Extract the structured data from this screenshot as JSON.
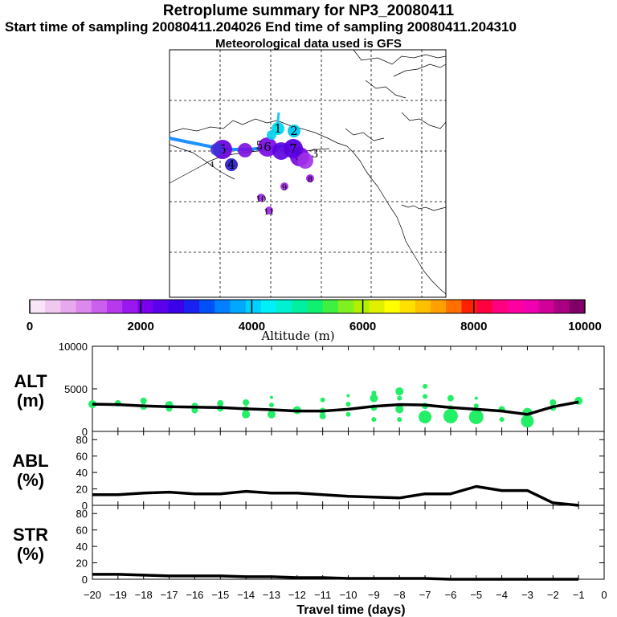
{
  "header": {
    "title": "Retroplume summary for NP3_20080411",
    "sampling_line": "Start time of sampling 20080411.204026     End time of sampling 20080411.204310",
    "met_line": "Meteorological data used is GFS"
  },
  "colors": {
    "scale": [
      "#f8e6f8",
      "#f0c8f0",
      "#e8a8ee",
      "#dc88ec",
      "#cc60ee",
      "#b838f0",
      "#9a18f0",
      "#7a00ee",
      "#5a00ea",
      "#3a00e8",
      "#1a20f0",
      "#0050f8",
      "#0080ff",
      "#00a8ff",
      "#00d0ff",
      "#00f0f8",
      "#00f0d0",
      "#00f0a0",
      "#10f070",
      "#40f040",
      "#80f020",
      "#b0f000",
      "#e0f000",
      "#ffff00",
      "#ffe000",
      "#ffc000",
      "#ffa000",
      "#ff7000",
      "#ff2000",
      "#ff0040",
      "#ff0080",
      "#ff00a0",
      "#f000b0",
      "#d00098",
      "#a80080",
      "#800068"
    ],
    "alt_marker": "#22ee66",
    "trajectory": "#1e90ff"
  },
  "map": {
    "clusters": [
      {
        "label": "1",
        "color": "#00d8f0",
        "size": "m"
      },
      {
        "label": "2",
        "color": "#00c8f0",
        "size": "m"
      },
      {
        "label": "3",
        "color": "#7a10e0",
        "size": "l"
      },
      {
        "label": "4",
        "color": "#3020d0",
        "size": "m"
      },
      {
        "label": "5",
        "color": "#6a08e0",
        "size": "l"
      },
      {
        "label": "6",
        "color": "#8010e8",
        "size": "l"
      },
      {
        "label": "7",
        "color": "#5a00e0",
        "size": "l"
      },
      {
        "label": "8",
        "color": "#a020e8",
        "size": "s"
      },
      {
        "label": "9",
        "color": "#a030e8",
        "size": "s"
      },
      {
        "label": "10",
        "color": "#9a30e0",
        "size": "s"
      },
      {
        "label": "11",
        "color": "#a030e8",
        "size": "s"
      }
    ],
    "extra_labels": [
      "4",
      "5",
      "3"
    ]
  },
  "colorbar": {
    "ticks": [
      "0",
      "2000",
      "4000",
      "6000",
      "8000",
      "10000"
    ],
    "label": "Altitude (m)"
  },
  "chart_data": [
    {
      "type": "line",
      "name": "ALT",
      "ylabel": "ALT\n(m)",
      "ylabel_top": "ALT",
      "ylabel_unit": "(m)",
      "ylim": [
        0,
        10000
      ],
      "yticks": [
        "0",
        "5000",
        "10000"
      ],
      "x": [
        -20,
        -19,
        -18,
        -17,
        -16,
        -15,
        -14,
        -13,
        -12,
        -11,
        -10,
        -9,
        -8,
        -7,
        -6,
        -5,
        -4,
        -3,
        -2,
        -1
      ],
      "values": [
        3200,
        3150,
        3000,
        2900,
        2850,
        2800,
        2650,
        2550,
        2400,
        2400,
        2600,
        2950,
        3150,
        3100,
        2800,
        2600,
        2400,
        2000,
        2900,
        3450
      ],
      "scatter": [
        {
          "x": -20,
          "y": 3200,
          "s": 5
        },
        {
          "x": -19,
          "y": 3300,
          "s": 4
        },
        {
          "x": -18,
          "y": 3600,
          "s": 4
        },
        {
          "x": -18,
          "y": 2900,
          "s": 4
        },
        {
          "x": -17,
          "y": 3100,
          "s": 5
        },
        {
          "x": -17,
          "y": 2700,
          "s": 4
        },
        {
          "x": -16,
          "y": 3000,
          "s": 4
        },
        {
          "x": -16,
          "y": 2500,
          "s": 4
        },
        {
          "x": -15,
          "y": 3300,
          "s": 4
        },
        {
          "x": -15,
          "y": 2700,
          "s": 4
        },
        {
          "x": -14,
          "y": 3400,
          "s": 4
        },
        {
          "x": -14,
          "y": 2600,
          "s": 4
        },
        {
          "x": -14,
          "y": 2000,
          "s": 5
        },
        {
          "x": -13,
          "y": 4000,
          "s": 2
        },
        {
          "x": -13,
          "y": 3100,
          "s": 3
        },
        {
          "x": -13,
          "y": 2000,
          "s": 5
        },
        {
          "x": -12,
          "y": 2500,
          "s": 5
        },
        {
          "x": -11,
          "y": 3700,
          "s": 3
        },
        {
          "x": -11,
          "y": 2400,
          "s": 4
        },
        {
          "x": -11,
          "y": 1800,
          "s": 4
        },
        {
          "x": -10,
          "y": 4200,
          "s": 2
        },
        {
          "x": -10,
          "y": 3200,
          "s": 3
        },
        {
          "x": -10,
          "y": 2000,
          "s": 3
        },
        {
          "x": -9,
          "y": 4500,
          "s": 3
        },
        {
          "x": -9,
          "y": 3900,
          "s": 5
        },
        {
          "x": -9,
          "y": 2800,
          "s": 4
        },
        {
          "x": -9,
          "y": 1400,
          "s": 3
        },
        {
          "x": -8,
          "y": 4700,
          "s": 5
        },
        {
          "x": -8,
          "y": 3900,
          "s": 3
        },
        {
          "x": -8,
          "y": 2600,
          "s": 5
        },
        {
          "x": -8,
          "y": 1400,
          "s": 3
        },
        {
          "x": -7,
          "y": 5300,
          "s": 3
        },
        {
          "x": -7,
          "y": 4100,
          "s": 3
        },
        {
          "x": -7,
          "y": 3000,
          "s": 4
        },
        {
          "x": -7,
          "y": 1700,
          "s": 8
        },
        {
          "x": -6,
          "y": 3900,
          "s": 4
        },
        {
          "x": -6,
          "y": 2800,
          "s": 3
        },
        {
          "x": -6,
          "y": 1800,
          "s": 9
        },
        {
          "x": -5,
          "y": 3900,
          "s": 2
        },
        {
          "x": -5,
          "y": 3000,
          "s": 3
        },
        {
          "x": -5,
          "y": 1700,
          "s": 9
        },
        {
          "x": -4,
          "y": 2600,
          "s": 4
        },
        {
          "x": -4,
          "y": 1400,
          "s": 3
        },
        {
          "x": -3,
          "y": 2200,
          "s": 6
        },
        {
          "x": -3,
          "y": 1200,
          "s": 8
        },
        {
          "x": -2,
          "y": 3400,
          "s": 4
        },
        {
          "x": -2,
          "y": 2800,
          "s": 4
        },
        {
          "x": -1,
          "y": 3600,
          "s": 5
        }
      ]
    },
    {
      "type": "line",
      "name": "ABL",
      "ylabel_top": "ABL",
      "ylabel_unit": "(%)",
      "ylim": [
        0,
        90
      ],
      "yticks": [
        "0",
        "20",
        "40",
        "60",
        "80"
      ],
      "x": [
        -20,
        -19,
        -18,
        -17,
        -16,
        -15,
        -14,
        -13,
        -12,
        -11,
        -10,
        -9,
        -8,
        -7,
        -6,
        -5,
        -4,
        -3,
        -2,
        -1
      ],
      "values": [
        13,
        13,
        15,
        16,
        14,
        14,
        17,
        15,
        15,
        13,
        11,
        10,
        9,
        14,
        14,
        23,
        18,
        18,
        3,
        0
      ]
    },
    {
      "type": "line",
      "name": "STR",
      "ylabel_top": "STR",
      "ylabel_unit": "(%)",
      "ylim": [
        0,
        90
      ],
      "yticks": [
        "0",
        "20",
        "40",
        "60",
        "80"
      ],
      "x": [
        -20,
        -19,
        -18,
        -17,
        -16,
        -15,
        -14,
        -13,
        -12,
        -11,
        -10,
        -9,
        -8,
        -7,
        -6,
        -5,
        -4,
        -3,
        -2,
        -1
      ],
      "values": [
        6,
        6,
        5,
        4,
        4,
        4,
        3,
        3,
        2,
        2,
        1,
        1,
        1,
        1,
        0,
        0,
        0,
        0,
        0,
        0
      ]
    }
  ],
  "xaxis": {
    "ticks": [
      "−20",
      "−19",
      "−18",
      "−17",
      "−16",
      "−15",
      "−14",
      "−13",
      "−12",
      "−11",
      "−10",
      "−9",
      "−8",
      "−7",
      "−6",
      "−5",
      "−4",
      "−3",
      "−2",
      "−1",
      "0"
    ],
    "label": "Travel time (days)"
  }
}
